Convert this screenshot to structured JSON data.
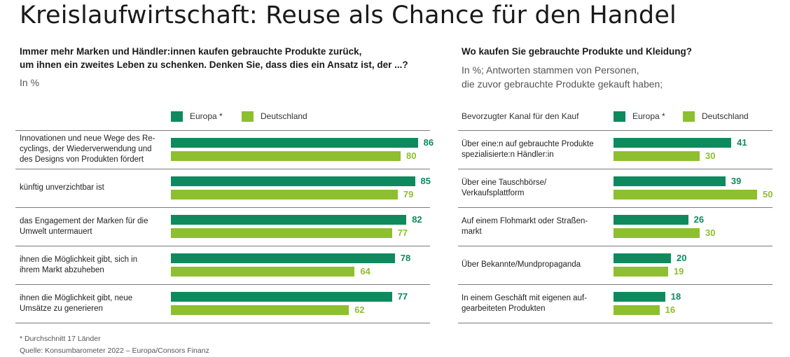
{
  "title": "Kreislaufwirtschaft: Reuse als Chance für den Handel",
  "colors": {
    "europa": "#0f8a5f",
    "deutschland": "#8dbf2f"
  },
  "left": {
    "question_line1": "Immer mehr Marken und Händler:innen kaufen gebrauchte Produkte zurück,",
    "question_line2": "um ihnen ein zweites Leben zu schenken. Denken Sie, dass dies ein Ansatz ist, der ...?",
    "unit": "In %",
    "legend": [
      "Europa *",
      "Deutschland"
    ]
  },
  "right": {
    "question": "Wo kaufen Sie gebrauchte Produkte und Kleidung?",
    "unit_line1": "In %; Antworten stammen von Personen,",
    "unit_line2": "die zuvor gebrauchte Produkte gekauft haben;",
    "channel_header": "Bevorzugter Kanal für den Kauf",
    "legend": [
      "Europa *",
      "Deutschland"
    ]
  },
  "footnote": "* Durchschnitt 17 Länder",
  "source": "Quelle: Konsumbarometer 2022 – Europa/Consors Finanz",
  "chart_data": [
    {
      "type": "bar",
      "title": "Immer mehr Marken und Händler:innen kaufen gebrauchte Produkte zurück, um ihnen ein zweites Leben zu schenken. Denken Sie, dass dies ein Ansatz ist, der ...?",
      "unit": "In %",
      "categories": [
        [
          "Innovationen und neue Wege des Re-",
          "cyclings, der Wiederverwendung und",
          "des Designs von Produkten fördert"
        ],
        [
          "künftig unverzichtbar ist"
        ],
        [
          "das Engagement der Marken für die",
          "Umwelt untermauert"
        ],
        [
          "ihnen die Möglichkeit gibt, sich in",
          "ihrem Markt abzuheben"
        ],
        [
          "ihnen die Möglichkeit gibt, neue",
          "Umsätze zu generieren"
        ]
      ],
      "series": [
        {
          "name": "Europa *",
          "values": [
            86,
            85,
            82,
            78,
            77
          ]
        },
        {
          "name": "Deutschland",
          "values": [
            80,
            79,
            77,
            64,
            62
          ]
        }
      ]
    },
    {
      "type": "bar",
      "title": "Wo kaufen Sie gebrauchte Produkte und Kleidung?",
      "unit": "In %",
      "categories": [
        [
          "Über eine:n auf gebrauchte Produkte",
          "spezialisierte:n Händler:in"
        ],
        [
          "Über eine Tauschbörse/",
          "Verkaufsplattform"
        ],
        [
          "Auf einem Flohmarkt oder Straßen-",
          "markt"
        ],
        [
          "Über Bekannte/Mundpropaganda"
        ],
        [
          "In einem Geschäft mit eigenen auf-",
          "gearbeiteten Produkten"
        ]
      ],
      "series": [
        {
          "name": "Europa *",
          "values": [
            41,
            39,
            26,
            20,
            18
          ]
        },
        {
          "name": "Deutschland",
          "values": [
            30,
            50,
            30,
            19,
            16
          ]
        }
      ]
    }
  ]
}
